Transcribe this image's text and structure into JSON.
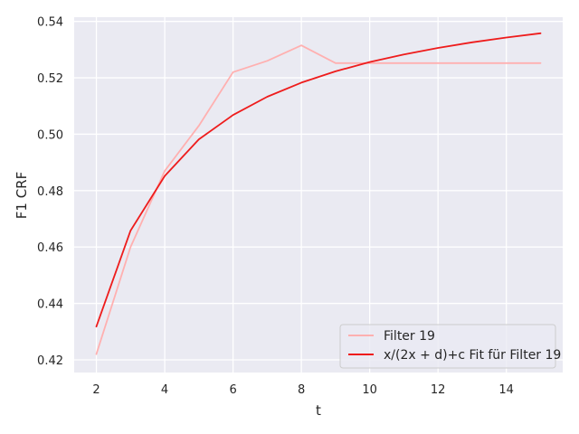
{
  "chart_data": {
    "type": "line",
    "xlabel": "t",
    "ylabel": "F1 CRF",
    "xlim": [
      1.35,
      15.65
    ],
    "ylim": [
      0.4155,
      0.5415
    ],
    "xticks": [
      2,
      4,
      6,
      8,
      10,
      12,
      14
    ],
    "yticks": [
      0.42,
      0.44,
      0.46,
      0.48,
      0.5,
      0.52,
      0.54
    ],
    "xtick_labels": [
      "2",
      "4",
      "6",
      "8",
      "10",
      "12",
      "14"
    ],
    "ytick_labels": [
      "0.42",
      "0.44",
      "0.46",
      "0.48",
      "0.50",
      "0.52",
      "0.54"
    ],
    "grid": true,
    "legend_position": "lower-right",
    "series": [
      {
        "name": "Filter 19",
        "color": "#ffb0b0",
        "x": [
          2,
          3,
          4,
          5,
          6,
          7,
          8,
          9,
          10,
          11,
          12,
          13,
          14,
          15
        ],
        "y": [
          0.422,
          0.46,
          0.487,
          0.503,
          0.522,
          0.526,
          0.5315,
          0.5252,
          0.5252,
          0.5252,
          0.5252,
          0.5252,
          0.5252,
          0.5252
        ]
      },
      {
        "name": "x/(2x + d)+c Fit für Filter 19",
        "color": "#ee1c1c",
        "x": [
          2,
          3,
          4,
          5,
          6,
          7,
          8,
          9,
          10,
          11,
          12,
          13,
          14,
          15
        ],
        "y": [
          0.4318,
          0.4658,
          0.4852,
          0.4982,
          0.5068,
          0.5133,
          0.5183,
          0.5223,
          0.5256,
          0.5283,
          0.5306,
          0.5326,
          0.5343,
          0.5358
        ]
      }
    ]
  }
}
